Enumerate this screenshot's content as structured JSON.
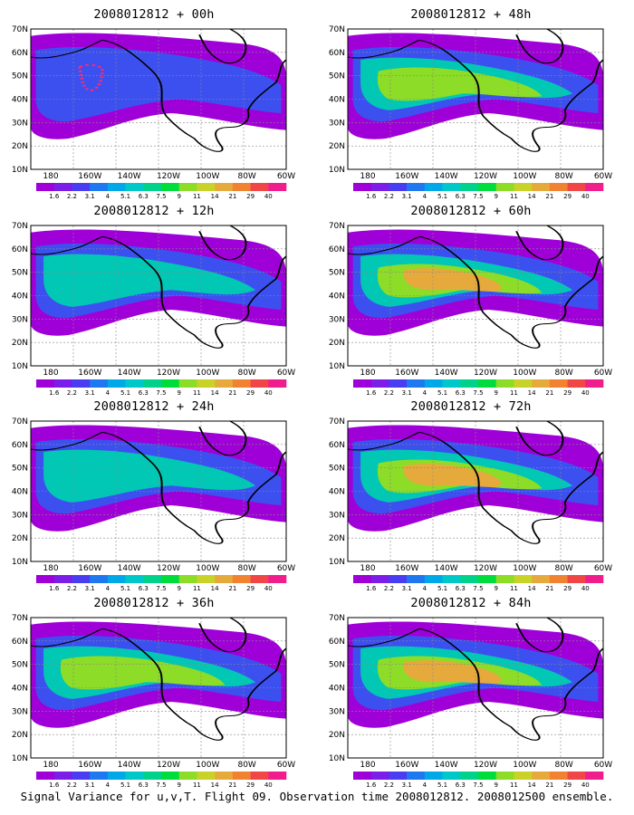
{
  "figure": {
    "caption": "Signal Variance for u,v,T. Flight 09. Observation time 2008012812. 2008012500 ensemble.",
    "lat_labels": [
      "70N",
      "60N",
      "50N",
      "40N",
      "30N",
      "20N",
      "10N"
    ],
    "lon_labels": [
      "180",
      "160W",
      "140W",
      "120W",
      "100W",
      "80W",
      "60W"
    ],
    "colorbar": {
      "labels": [
        "1.6",
        "2.2",
        "3.1",
        "4",
        "5.1",
        "6.3",
        "7.5",
        "9",
        "11",
        "14",
        "21",
        "29",
        "40"
      ],
      "colors": [
        "#a000d8",
        "#7a1ee8",
        "#4a3cf0",
        "#1e78f0",
        "#00a8e8",
        "#00c8c8",
        "#00d28c",
        "#00dc3c",
        "#8cdc28",
        "#c8d228",
        "#e6aa3c",
        "#f08232",
        "#f04646",
        "#f01e8c"
      ]
    },
    "panels": [
      {
        "id": "p00",
        "title": "2008012812 + 00h",
        "col": 0,
        "row": 0,
        "level": 0.35
      },
      {
        "id": "p48",
        "title": "2008012812 + 48h",
        "col": 1,
        "row": 0,
        "level": 0.8
      },
      {
        "id": "p12",
        "title": "2008012812 + 12h",
        "col": 0,
        "row": 1,
        "level": 0.5
      },
      {
        "id": "p60",
        "title": "2008012812 + 60h",
        "col": 1,
        "row": 1,
        "level": 0.85
      },
      {
        "id": "p24",
        "title": "2008012812 + 24h",
        "col": 0,
        "row": 2,
        "level": 0.62
      },
      {
        "id": "p72",
        "title": "2008012812 + 72h",
        "col": 1,
        "row": 2,
        "level": 0.92
      },
      {
        "id": "p36",
        "title": "2008012812 + 36h",
        "col": 0,
        "row": 3,
        "level": 0.72
      },
      {
        "id": "p84",
        "title": "2008012812 + 84h",
        "col": 1,
        "row": 3,
        "level": 0.95
      }
    ]
  }
}
